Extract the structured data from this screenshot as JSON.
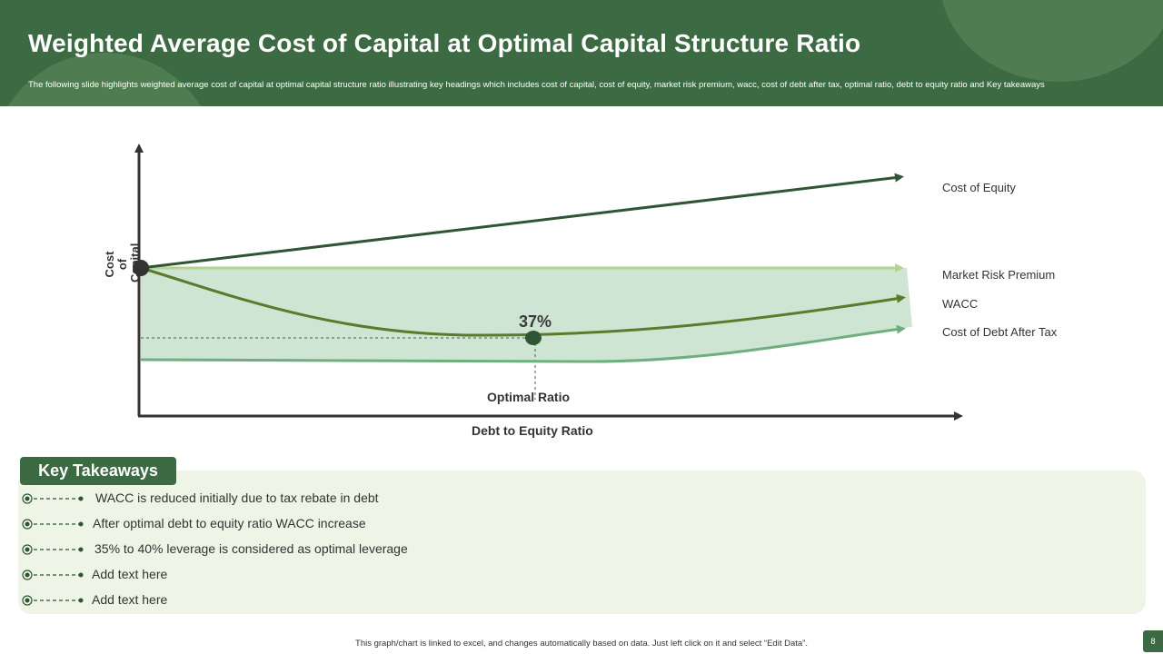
{
  "header": {
    "title": "Weighted Average Cost of Capital at Optimal Capital Structure Ratio",
    "subtitle": "The following slide highlights weighted average cost of capital at optimal capital structure ratio illustrating key headings which includes cost of capital, cost of equity, market risk premium,  wacc, cost of debt after tax, optimal ratio, debt to equity ratio and Key takeaways"
  },
  "diagram": {
    "y_axis_label": "Cost of Capital",
    "x_axis_label": "Debt to Equity Ratio",
    "optimal_label": "Optimal Ratio",
    "optimal_value": "37%",
    "series": [
      {
        "name": "Cost of Equity",
        "color": "#2f5535"
      },
      {
        "name": "Market Risk Premium",
        "color": "#b5d38f"
      },
      {
        "name": "WACC",
        "color": "#5a7a2c"
      },
      {
        "name": "Cost of Debt After Tax",
        "color": "#6fae7e"
      }
    ],
    "band_color": "#cfe5d3"
  },
  "takeaways": {
    "heading": "Key Takeaways",
    "items": [
      "WACC is reduced initially due to tax rebate in debt",
      "After optimal debt to equity ratio WACC increase",
      "35% to 40% leverage is considered as optimal leverage",
      "Add text here",
      "Add text here"
    ]
  },
  "footer": {
    "note": "This graph/chart is linked to excel, and changes automatically based on data. Just left click on it and select “Edit Data”.",
    "page_number": "8"
  }
}
